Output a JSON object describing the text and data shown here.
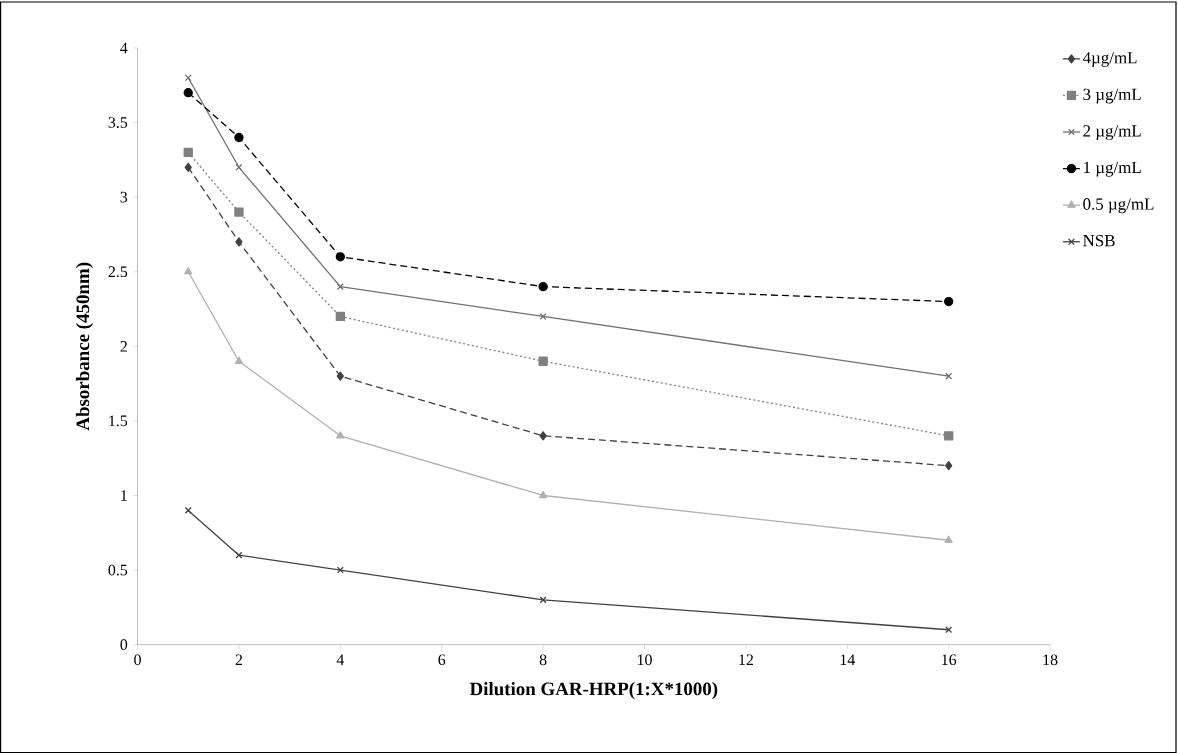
{
  "chart_data": {
    "type": "line",
    "xlabel": "Dilution GAR-HRP(1:X*1000)",
    "ylabel": "Absorbance (450nm)",
    "x": [
      1,
      2,
      4,
      8,
      16
    ],
    "xlim": [
      0,
      18
    ],
    "xticks": [
      0,
      2,
      4,
      6,
      8,
      10,
      12,
      14,
      16,
      18
    ],
    "ylim": [
      0,
      4
    ],
    "yticks": [
      0,
      0.5,
      1,
      1.5,
      2,
      2.5,
      3,
      3.5,
      4
    ],
    "grid": false,
    "legend": "top right",
    "series": [
      {
        "name": "4µg/mL",
        "color": "#404040",
        "marker": "diamond",
        "line_style": "dashed",
        "values": [
          3.2,
          2.7,
          1.8,
          1.4,
          1.2
        ]
      },
      {
        "name": "3 µg/mL",
        "color": "#808080",
        "marker": "square",
        "line_style": "dotted",
        "values": [
          3.3,
          2.9,
          2.2,
          1.9,
          1.4
        ]
      },
      {
        "name": "2 µg/mL",
        "color": "#707070",
        "marker": "cross",
        "line_style": "solid",
        "values": [
          3.8,
          3.2,
          2.4,
          2.2,
          1.8
        ]
      },
      {
        "name": "1 µg/mL",
        "color": "#000000",
        "marker": "circle",
        "line_style": "dashed",
        "values": [
          3.7,
          3.4,
          2.6,
          2.4,
          2.3
        ]
      },
      {
        "name": "0.5 µg/mL",
        "color": "#b0b0b0",
        "marker": "triangle",
        "line_style": "solid",
        "values": [
          2.5,
          1.9,
          1.4,
          1.0,
          0.7
        ]
      },
      {
        "name": "NSB",
        "color": "#404040",
        "marker": "cross",
        "line_style": "solid",
        "values": [
          0.9,
          0.6,
          0.5,
          0.3,
          0.1
        ]
      }
    ]
  }
}
